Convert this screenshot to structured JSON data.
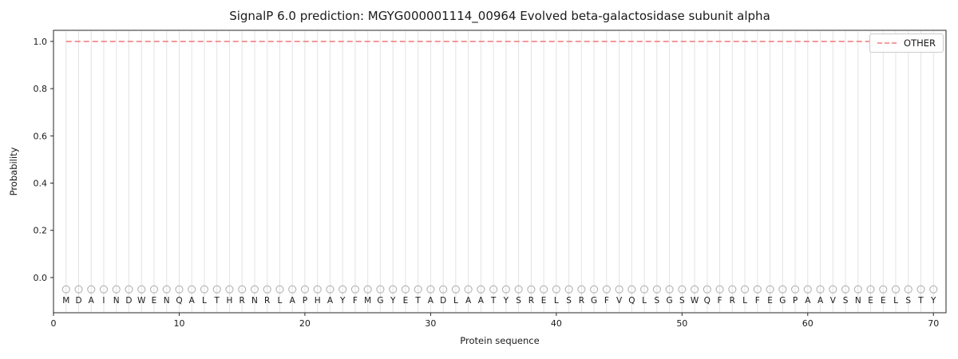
{
  "chart_data": {
    "type": "line",
    "title": "SignalP 6.0 prediction: MGYG000001114_00964 Evolved beta-galactosidase subunit alpha",
    "xlabel": "Protein sequence",
    "ylabel": "Probability",
    "xlim": [
      0,
      71
    ],
    "ylim": [
      -0.149,
      1.047
    ],
    "x_ticks": [
      0,
      10,
      20,
      30,
      40,
      50,
      60,
      70
    ],
    "y_ticks": [
      0.0,
      0.2,
      0.4,
      0.6,
      0.8,
      1.0
    ],
    "y_tick_labels": [
      "0.0",
      "0.2",
      "0.4",
      "0.6",
      "0.8",
      "1.0"
    ],
    "grid": "vertical-line-per-residue",
    "sequence": "MDAINDWENQALTHRNRLAPHAYFMGYETADLAATYSRELSRGFVQLSGSWQFRLFEGPAAVSNEELSTY",
    "sequence_length": 70,
    "series": [
      {
        "name": "OTHER",
        "linestyle": "dashed",
        "color": "#f87e7e",
        "value": 1.0,
        "x_range": [
          1,
          70
        ]
      }
    ],
    "position_markers": {
      "symbol": "open-circle",
      "y": -0.05,
      "color": "#b3b3b3"
    },
    "legend": {
      "position": "upper-right",
      "entries": [
        {
          "label": "OTHER",
          "linestyle": "dashed",
          "color": "#f87e7e"
        }
      ]
    },
    "colors": {
      "grid": "#e3e3e3",
      "axis": "#262626",
      "text": "#1a1a1a",
      "background": "#ffffff"
    }
  }
}
